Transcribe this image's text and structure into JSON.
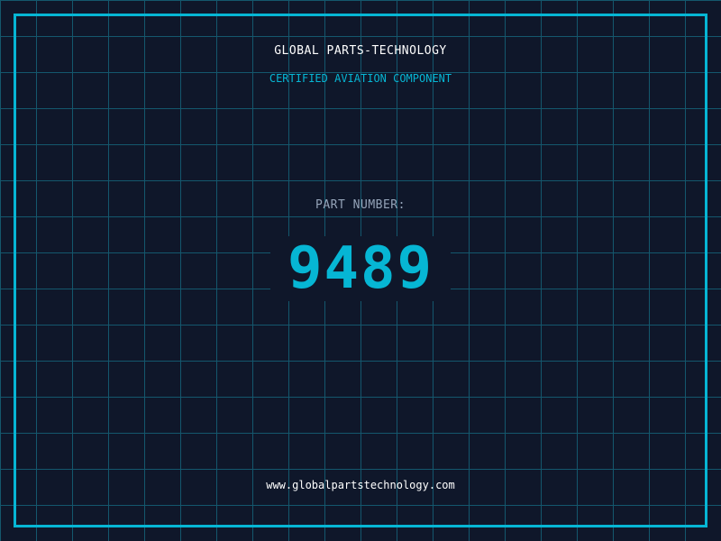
{
  "header": {
    "company": "GLOBAL PARTS-TECHNOLOGY",
    "subtitle": "CERTIFIED AVIATION COMPONENT"
  },
  "part": {
    "label": "PART NUMBER:",
    "number": "9489"
  },
  "footer": {
    "url": "www.globalpartstechnology.com"
  },
  "colors": {
    "background": "#0f172a",
    "accent": "#06b6d4",
    "grid": "#155e75",
    "label": "#94a3b8"
  }
}
